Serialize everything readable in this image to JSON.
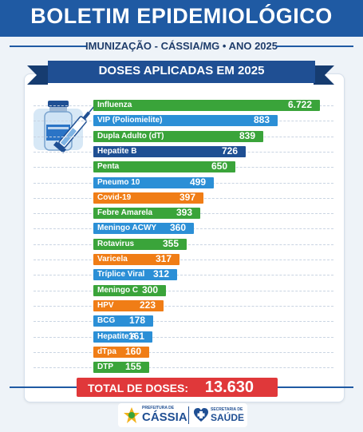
{
  "header": {
    "title": "BOLETIM EPIDEMIOLÓGICO"
  },
  "subtitle": "IMUNIZAÇÃO - CÁSSIA/MG • ANO 2025",
  "banner": {
    "title": "DOSES APLICADAS EM 2025"
  },
  "chart_data": {
    "type": "bar",
    "orientation": "horizontal",
    "title": "DOSES APLICADAS EM 2025",
    "categories": [
      "Influenza",
      "VIP (Poliomielite)",
      "Dupla Adulto (dT)",
      "Hepatite B",
      "Penta",
      "Pneumo 10",
      "Covid-19",
      "Febre Amarela",
      "Meningo ACWY",
      "Rotavirus",
      "Varicela",
      "Tríplice Viral",
      "Meningo C",
      "HPV",
      "BCG",
      "Hepatite A",
      "dTpa",
      "DTP"
    ],
    "values": [
      6722,
      883,
      839,
      726,
      650,
      499,
      397,
      393,
      360,
      355,
      317,
      312,
      300,
      223,
      178,
      161,
      160,
      155
    ],
    "value_labels": [
      "6.722",
      "883",
      "839",
      "726",
      "650",
      "499",
      "397",
      "393",
      "360",
      "355",
      "317",
      "312",
      "300",
      "223",
      "178",
      "161",
      "160",
      "155"
    ],
    "bar_colors": [
      "#3aa43a",
      "#2b8fd6",
      "#3aa43a",
      "#1f4f93",
      "#3aa43a",
      "#2b8fd6",
      "#f07d16",
      "#3aa43a",
      "#2b8fd6",
      "#3aa43a",
      "#f07d16",
      "#2b8fd6",
      "#3aa43a",
      "#f07d16",
      "#2b8fd6",
      "#2b8fd6",
      "#f07d16",
      "#3aa43a"
    ],
    "display_length_ratios": [
      1.0,
      0.813,
      0.751,
      0.674,
      0.625,
      0.533,
      0.486,
      0.472,
      0.445,
      0.411,
      0.379,
      0.369,
      0.319,
      0.31,
      0.263,
      0.259,
      0.246,
      0.246
    ],
    "grid": false,
    "legend": "none"
  },
  "total": {
    "label": "TOTAL DE DOSES:",
    "value": "13.630"
  },
  "footer": {
    "logo_city": "CÁSSIA",
    "logo_city_small": "PREFEITURA DE",
    "logo_health": "SAÚDE",
    "logo_health_small": "SECRETARIA DE"
  },
  "colors": {
    "primary": "#1f5aa3",
    "green": "#3aa43a",
    "blue": "#2b8fd6",
    "orange": "#f07d16",
    "navy": "#1f4f93",
    "red": "#e0383a"
  },
  "icons": {
    "vaccine": "vaccine-vial-syringe-icon"
  }
}
